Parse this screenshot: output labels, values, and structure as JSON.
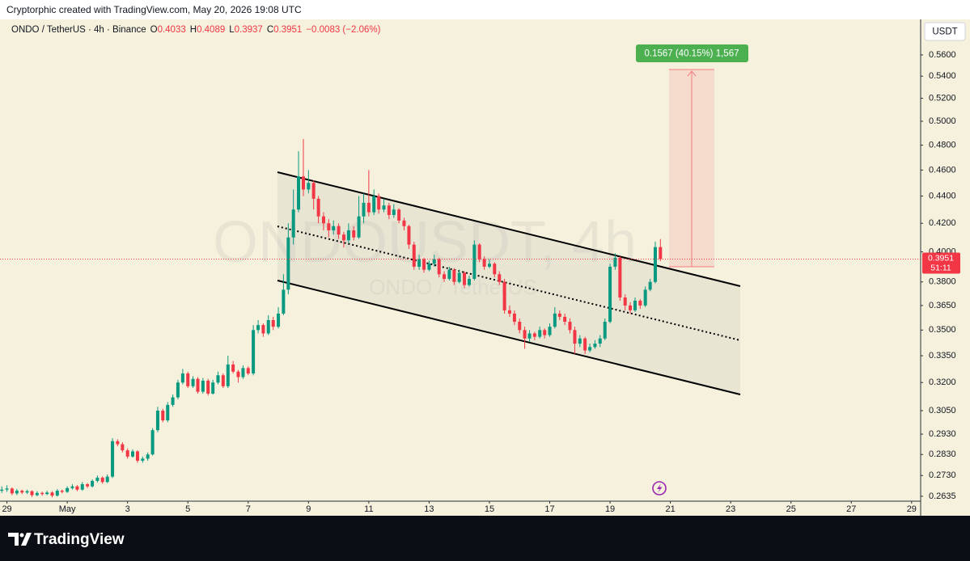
{
  "header": {
    "text": "Cryptorphic created with TradingView.com, May 20, 2026 19:08 UTC"
  },
  "chart_data": {
    "type": "candlestick",
    "title": "ONDO / TetherUS · 4h · Binance",
    "ohlc_labels": [
      "O",
      "H",
      "L",
      "C"
    ],
    "change": "−0.0083 (−2.06%)",
    "watermark": "ONDOUSDT, 4h",
    "watermark_sub": "ONDO / TetherUS",
    "currency": "USDT",
    "price_countdown": "51:11",
    "measure_label": "0.1567 (40.15%) 1,567",
    "up_color": "#089981",
    "down_color": "#f23645",
    "log_scale": true,
    "grid": false,
    "xlim": [
      -2.23,
      28.3
    ],
    "ylim": [
      0.2613,
      0.595
    ],
    "xticks": [
      {
        "value": -2,
        "label": "29"
      },
      {
        "value": 0,
        "label": "May"
      },
      {
        "value": 2,
        "label": "3"
      },
      {
        "value": 4,
        "label": "5"
      },
      {
        "value": 6,
        "label": "7"
      },
      {
        "value": 8,
        "label": "9"
      },
      {
        "value": 10,
        "label": "11"
      },
      {
        "value": 12,
        "label": "13"
      },
      {
        "value": 14,
        "label": "15"
      },
      {
        "value": 16,
        "label": "17"
      },
      {
        "value": 18,
        "label": "19"
      },
      {
        "value": 20,
        "label": "21"
      },
      {
        "value": 22,
        "label": "23"
      },
      {
        "value": 24,
        "label": "25"
      },
      {
        "value": 26,
        "label": "27"
      },
      {
        "value": 28,
        "label": "29"
      }
    ],
    "yticks": [
      {
        "value": 0.2635,
        "label": "0.2635"
      },
      {
        "value": 0.273,
        "label": "0.2730"
      },
      {
        "value": 0.283,
        "label": "0.2830"
      },
      {
        "value": 0.293,
        "label": "0.2930"
      },
      {
        "value": 0.305,
        "label": "0.3050"
      },
      {
        "value": 0.32,
        "label": "0.3200"
      },
      {
        "value": 0.335,
        "label": "0.3350"
      },
      {
        "value": 0.35,
        "label": "0.3500"
      },
      {
        "value": 0.365,
        "label": "0.3650"
      },
      {
        "value": 0.38,
        "label": "0.3800"
      },
      {
        "value": 0.4,
        "label": "0.4000"
      },
      {
        "value": 0.42,
        "label": "0.4200"
      },
      {
        "value": 0.44,
        "label": "0.4400"
      },
      {
        "value": 0.46,
        "label": "0.4600"
      },
      {
        "value": 0.48,
        "label": "0.4800"
      },
      {
        "value": 0.5,
        "label": "0.5000"
      },
      {
        "value": 0.52,
        "label": "0.5200"
      },
      {
        "value": 0.54,
        "label": "0.5400"
      },
      {
        "value": 0.56,
        "label": "0.5600"
      }
    ],
    "x": [
      -2.17,
      -2,
      -1.83,
      -1.67,
      -1.5,
      -1.33,
      -1.17,
      -1,
      -0.83,
      -0.67,
      -0.5,
      -0.33,
      -0.17,
      0,
      0.17,
      0.33,
      0.5,
      0.67,
      0.83,
      1,
      1.17,
      1.33,
      1.5,
      1.67,
      1.83,
      2,
      2.17,
      2.33,
      2.5,
      2.67,
      2.83,
      3,
      3.17,
      3.33,
      3.5,
      3.67,
      3.83,
      4,
      4.17,
      4.33,
      4.5,
      4.67,
      4.83,
      5,
      5.17,
      5.33,
      5.5,
      5.67,
      5.83,
      6,
      6.17,
      6.33,
      6.5,
      6.67,
      6.83,
      7,
      7.17,
      7.33,
      7.5,
      7.67,
      7.83,
      8,
      8.17,
      8.33,
      8.5,
      8.67,
      8.83,
      9,
      9.17,
      9.33,
      9.5,
      9.67,
      9.83,
      10,
      10.17,
      10.33,
      10.5,
      10.67,
      10.83,
      11,
      11.17,
      11.33,
      11.5,
      11.67,
      11.83,
      12,
      12.17,
      12.33,
      12.5,
      12.67,
      12.83,
      13,
      13.17,
      13.33,
      13.5,
      13.67,
      13.83,
      14,
      14.17,
      14.33,
      14.5,
      14.67,
      14.83,
      15,
      15.17,
      15.33,
      15.5,
      15.67,
      15.83,
      16,
      16.17,
      16.33,
      16.5,
      16.67,
      16.83,
      17,
      17.17,
      17.33,
      17.5,
      17.67,
      17.83,
      18,
      18.17,
      18.33,
      18.5,
      18.67,
      18.83,
      19,
      19.17,
      19.33,
      19.5,
      19.67
    ],
    "candles": [
      [
        0.266,
        0.268,
        0.265,
        0.2665
      ],
      [
        0.2665,
        0.2685,
        0.2655,
        0.267
      ],
      [
        0.267,
        0.2675,
        0.264,
        0.2648
      ],
      [
        0.2648,
        0.2668,
        0.264,
        0.266
      ],
      [
        0.266,
        0.2665,
        0.2645,
        0.2652
      ],
      [
        0.2652,
        0.2665,
        0.2645,
        0.2658
      ],
      [
        0.2658,
        0.2662,
        0.2632,
        0.264
      ],
      [
        0.264,
        0.2658,
        0.2635,
        0.265
      ],
      [
        0.265,
        0.2656,
        0.2638,
        0.2645
      ],
      [
        0.2645,
        0.266,
        0.264,
        0.2652
      ],
      [
        0.2652,
        0.2658,
        0.263,
        0.2638
      ],
      [
        0.2638,
        0.2668,
        0.2634,
        0.266
      ],
      [
        0.266,
        0.2665,
        0.2648,
        0.2655
      ],
      [
        0.2655,
        0.268,
        0.265,
        0.2672
      ],
      [
        0.2672,
        0.269,
        0.2665,
        0.268
      ],
      [
        0.268,
        0.2686,
        0.2658,
        0.2665
      ],
      [
        0.2665,
        0.27,
        0.266,
        0.269
      ],
      [
        0.269,
        0.2695,
        0.2672,
        0.268
      ],
      [
        0.268,
        0.2712,
        0.2675,
        0.2705
      ],
      [
        0.2705,
        0.273,
        0.2698,
        0.272
      ],
      [
        0.272,
        0.2726,
        0.2692,
        0.27
      ],
      [
        0.27,
        0.2735,
        0.2695,
        0.2725
      ],
      [
        0.2725,
        0.291,
        0.2718,
        0.2895
      ],
      [
        0.2895,
        0.2905,
        0.287,
        0.288
      ],
      [
        0.288,
        0.289,
        0.284,
        0.285
      ],
      [
        0.285,
        0.286,
        0.281,
        0.282
      ],
      [
        0.282,
        0.2855,
        0.2815,
        0.2845
      ],
      [
        0.2845,
        0.285,
        0.279,
        0.28
      ],
      [
        0.28,
        0.282,
        0.279,
        0.281
      ],
      [
        0.281,
        0.284,
        0.28,
        0.283
      ],
      [
        0.283,
        0.296,
        0.2825,
        0.295
      ],
      [
        0.295,
        0.307,
        0.294,
        0.305
      ],
      [
        0.305,
        0.306,
        0.299,
        0.3
      ],
      [
        0.3,
        0.3095,
        0.299,
        0.308
      ],
      [
        0.308,
        0.3135,
        0.307,
        0.312
      ],
      [
        0.312,
        0.3215,
        0.311,
        0.32
      ],
      [
        0.32,
        0.3275,
        0.319,
        0.325
      ],
      [
        0.325,
        0.326,
        0.317,
        0.318
      ],
      [
        0.318,
        0.3235,
        0.317,
        0.322
      ],
      [
        0.322,
        0.323,
        0.314,
        0.315
      ],
      [
        0.315,
        0.3225,
        0.314,
        0.321
      ],
      [
        0.321,
        0.322,
        0.313,
        0.314
      ],
      [
        0.314,
        0.3215,
        0.3135,
        0.32
      ],
      [
        0.32,
        0.326,
        0.319,
        0.324
      ],
      [
        0.324,
        0.325,
        0.317,
        0.318
      ],
      [
        0.318,
        0.335,
        0.317,
        0.33
      ],
      [
        0.33,
        0.332,
        0.325,
        0.326
      ],
      [
        0.326,
        0.327,
        0.32,
        0.323
      ],
      [
        0.323,
        0.3295,
        0.322,
        0.328
      ],
      [
        0.328,
        0.329,
        0.324,
        0.325
      ],
      [
        0.325,
        0.353,
        0.324,
        0.35
      ],
      [
        0.35,
        0.356,
        0.348,
        0.353
      ],
      [
        0.353,
        0.354,
        0.346,
        0.348
      ],
      [
        0.348,
        0.359,
        0.347,
        0.356
      ],
      [
        0.356,
        0.358,
        0.35,
        0.352
      ],
      [
        0.352,
        0.364,
        0.351,
        0.36
      ],
      [
        0.36,
        0.385,
        0.359,
        0.375
      ],
      [
        0.375,
        0.42,
        0.372,
        0.41
      ],
      [
        0.41,
        0.445,
        0.405,
        0.43
      ],
      [
        0.43,
        0.475,
        0.428,
        0.455
      ],
      [
        0.455,
        0.485,
        0.44,
        0.445
      ],
      [
        0.445,
        0.46,
        0.442,
        0.45
      ],
      [
        0.45,
        0.452,
        0.43,
        0.438
      ],
      [
        0.438,
        0.44,
        0.42,
        0.425
      ],
      [
        0.425,
        0.428,
        0.415,
        0.42
      ],
      [
        0.42,
        0.423,
        0.41,
        0.415
      ],
      [
        0.415,
        0.422,
        0.412,
        0.418
      ],
      [
        0.418,
        0.42,
        0.409,
        0.412
      ],
      [
        0.412,
        0.414,
        0.403,
        0.408
      ],
      [
        0.408,
        0.42,
        0.406,
        0.415
      ],
      [
        0.415,
        0.418,
        0.408,
        0.41
      ],
      [
        0.41,
        0.44,
        0.409,
        0.425
      ],
      [
        0.425,
        0.442,
        0.42,
        0.435
      ],
      [
        0.435,
        0.46,
        0.425,
        0.428
      ],
      [
        0.428,
        0.445,
        0.426,
        0.44
      ],
      [
        0.44,
        0.442,
        0.427,
        0.43
      ],
      [
        0.43,
        0.438,
        0.428,
        0.433
      ],
      [
        0.433,
        0.435,
        0.423,
        0.426
      ],
      [
        0.426,
        0.434,
        0.424,
        0.43
      ],
      [
        0.43,
        0.431,
        0.42,
        0.422
      ],
      [
        0.422,
        0.424,
        0.415,
        0.418
      ],
      [
        0.418,
        0.419,
        0.402,
        0.405
      ],
      [
        0.405,
        0.407,
        0.388,
        0.39
      ],
      [
        0.39,
        0.398,
        0.388,
        0.395
      ],
      [
        0.395,
        0.396,
        0.386,
        0.388
      ],
      [
        0.388,
        0.394,
        0.387,
        0.392
      ],
      [
        0.392,
        0.398,
        0.39,
        0.395
      ],
      [
        0.395,
        0.396,
        0.383,
        0.385
      ],
      [
        0.385,
        0.387,
        0.38,
        0.382
      ],
      [
        0.382,
        0.39,
        0.381,
        0.388
      ],
      [
        0.388,
        0.389,
        0.378,
        0.38
      ],
      [
        0.38,
        0.388,
        0.379,
        0.386
      ],
      [
        0.386,
        0.387,
        0.376,
        0.378
      ],
      [
        0.378,
        0.384,
        0.377,
        0.382
      ],
      [
        0.382,
        0.408,
        0.381,
        0.405
      ],
      [
        0.405,
        0.406,
        0.393,
        0.395
      ],
      [
        0.395,
        0.397,
        0.388,
        0.39
      ],
      [
        0.39,
        0.395,
        0.389,
        0.392
      ],
      [
        0.392,
        0.393,
        0.383,
        0.385
      ],
      [
        0.385,
        0.387,
        0.378,
        0.38
      ],
      [
        0.38,
        0.382,
        0.36,
        0.362
      ],
      [
        0.362,
        0.365,
        0.358,
        0.36
      ],
      [
        0.36,
        0.362,
        0.353,
        0.355
      ],
      [
        0.355,
        0.357,
        0.348,
        0.35
      ],
      [
        0.35,
        0.352,
        0.339,
        0.345
      ],
      [
        0.345,
        0.35,
        0.343,
        0.348
      ],
      [
        0.348,
        0.349,
        0.344,
        0.346
      ],
      [
        0.346,
        0.352,
        0.345,
        0.35
      ],
      [
        0.35,
        0.351,
        0.345,
        0.347
      ],
      [
        0.347,
        0.354,
        0.346,
        0.352
      ],
      [
        0.352,
        0.364,
        0.351,
        0.36
      ],
      [
        0.36,
        0.362,
        0.356,
        0.358
      ],
      [
        0.358,
        0.36,
        0.353,
        0.355
      ],
      [
        0.355,
        0.357,
        0.348,
        0.35
      ],
      [
        0.35,
        0.352,
        0.336,
        0.342
      ],
      [
        0.342,
        0.347,
        0.34,
        0.345
      ],
      [
        0.345,
        0.346,
        0.336,
        0.338
      ],
      [
        0.338,
        0.342,
        0.337,
        0.34
      ],
      [
        0.34,
        0.344,
        0.339,
        0.342
      ],
      [
        0.342,
        0.347,
        0.34,
        0.345
      ],
      [
        0.345,
        0.357,
        0.344,
        0.355
      ],
      [
        0.355,
        0.392,
        0.354,
        0.39
      ],
      [
        0.39,
        0.399,
        0.388,
        0.396
      ],
      [
        0.396,
        0.397,
        0.368,
        0.37
      ],
      [
        0.37,
        0.372,
        0.362,
        0.365
      ],
      [
        0.365,
        0.367,
        0.36,
        0.362
      ],
      [
        0.362,
        0.37,
        0.361,
        0.368
      ],
      [
        0.368,
        0.369,
        0.363,
        0.365
      ],
      [
        0.365,
        0.377,
        0.364,
        0.375
      ],
      [
        0.375,
        0.382,
        0.374,
        0.38
      ],
      [
        0.38,
        0.407,
        0.379,
        0.4033
      ],
      [
        0.4033,
        0.4089,
        0.3937,
        0.3951
      ]
    ]
  },
  "footer": {
    "logo": "TradingView"
  }
}
